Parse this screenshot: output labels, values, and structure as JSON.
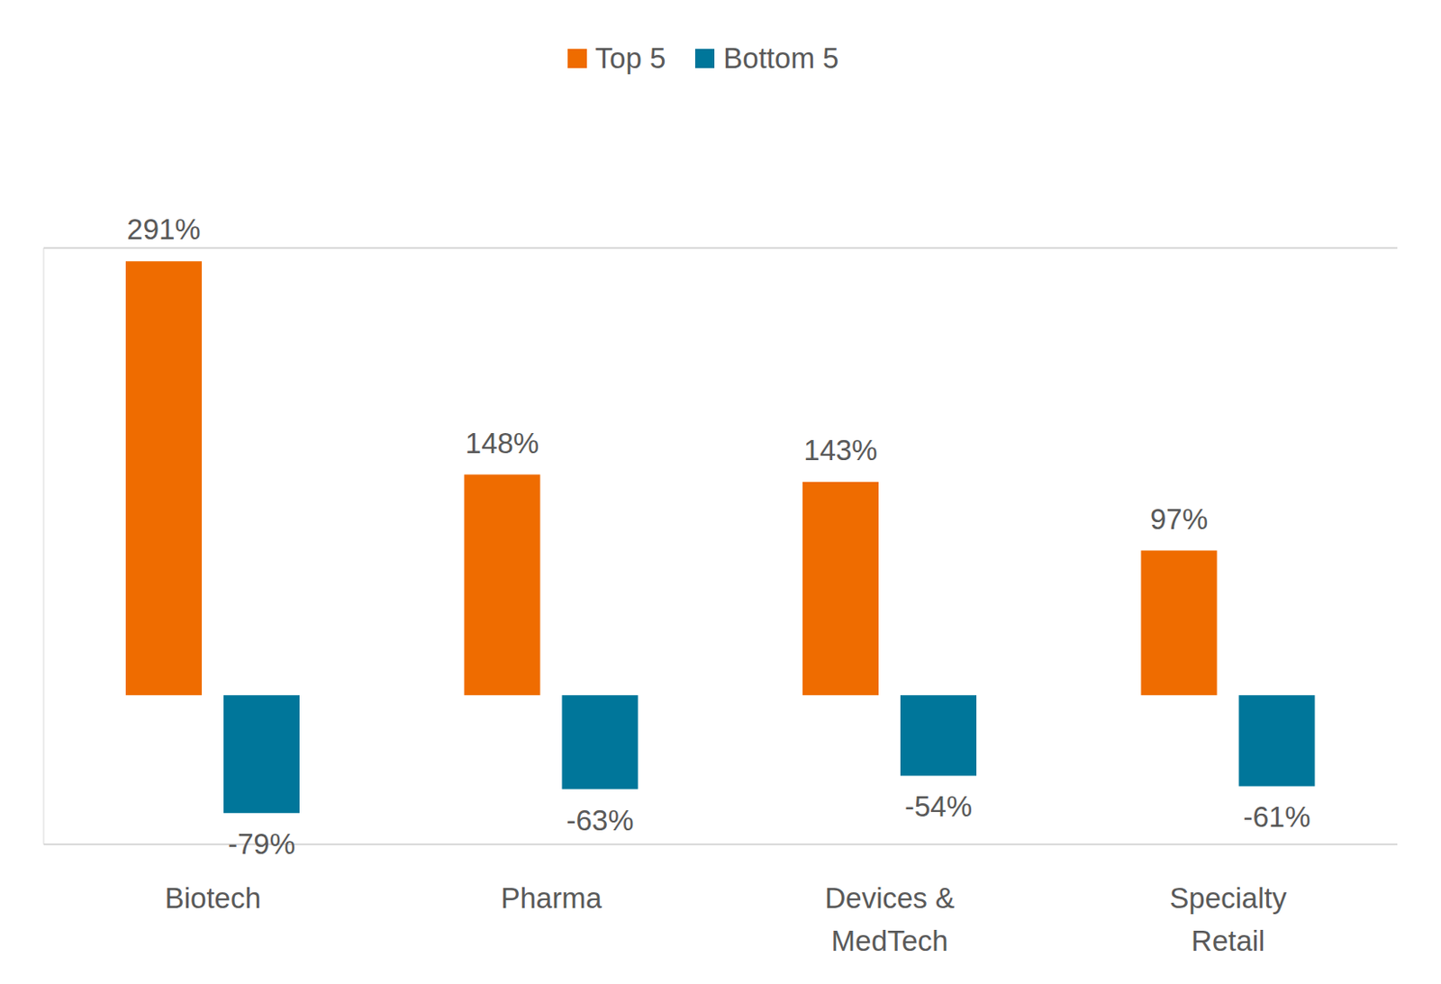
{
  "chart_data": {
    "type": "bar",
    "categories": [
      "Biotech",
      "Pharma",
      "Devices & MedTech",
      "Specialty Retail"
    ],
    "series": [
      {
        "name": "Top 5",
        "color": "#ef6c00",
        "values": [
          291,
          148,
          143,
          97
        ]
      },
      {
        "name": "Bottom 5",
        "color": "#00769a",
        "values": [
          -79,
          -63,
          -54,
          -61
        ]
      }
    ],
    "value_labels": [
      [
        "291%",
        "148%",
        "143%",
        "97%"
      ],
      [
        "-79%",
        "-63%",
        "-54%",
        "-61%"
      ]
    ],
    "ylim": [
      -100,
      300
    ],
    "yticks": [
      0
    ],
    "grid": true,
    "legend": "top",
    "data_labels": true,
    "tick_labels": "x"
  }
}
